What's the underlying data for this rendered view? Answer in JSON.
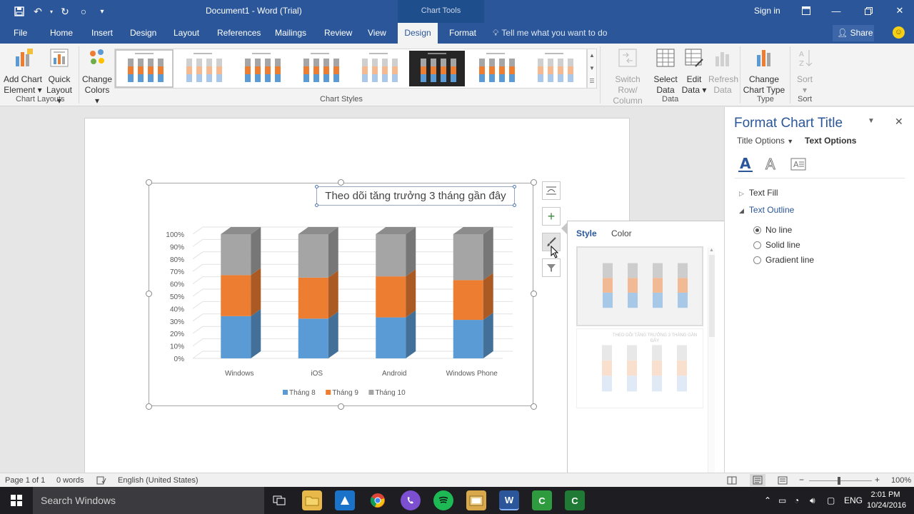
{
  "titlebar": {
    "doc_title": "Document1 - Word (Trial)",
    "context_tab": "Chart Tools",
    "signin": "Sign in"
  },
  "tabs": [
    "File",
    "Home",
    "Insert",
    "Design",
    "Layout",
    "References",
    "Mailings",
    "Review",
    "View",
    "Design",
    "Format"
  ],
  "active_tab_index": 9,
  "tell_me": "Tell me what you want to do",
  "share": "Share",
  "ribbon": {
    "add_chart_element": "Add Chart",
    "add_chart_element2": "Element",
    "quick_layout": "Quick",
    "quick_layout2": "Layout",
    "change_colors": "Change",
    "change_colors2": "Colors",
    "chart_layouts_label": "Chart Layouts",
    "chart_styles_label": "Chart Styles",
    "switch_row": "Switch Row/",
    "switch_row2": "Column",
    "select_data": "Select",
    "select_data2": "Data",
    "edit_data": "Edit",
    "edit_data2": "Data",
    "refresh_data": "Refresh",
    "refresh_data2": "Data",
    "data_label": "Data",
    "change_chart_type": "Change",
    "change_chart_type2": "Chart Type",
    "type_label": "Type",
    "sort": "Sort",
    "sort_label": "Sort",
    "accent": "#2b579a"
  },
  "chart": {
    "title": "Theo dõi tăng trưởng 3 tháng gần đây"
  },
  "chart_data": {
    "type": "bar",
    "stacking": "percent",
    "style": "3d-column",
    "title": "Theo dõi tăng trưởng 3 tháng gần đây",
    "categories": [
      "Windows",
      "iOS",
      "Android",
      "Windows Phone"
    ],
    "series": [
      {
        "name": "Tháng 8",
        "color": "#5b9bd5",
        "values": [
          34,
          32,
          33,
          31
        ]
      },
      {
        "name": "Tháng 9",
        "color": "#ed7d31",
        "values": [
          33,
          33,
          33,
          32
        ]
      },
      {
        "name": "Tháng 10",
        "color": "#a5a5a5",
        "values": [
          33,
          35,
          34,
          37
        ]
      }
    ],
    "y_ticks": [
      "0%",
      "10%",
      "20%",
      "30%",
      "40%",
      "50%",
      "60%",
      "70%",
      "80%",
      "90%",
      "100%"
    ],
    "ylim": [
      0,
      100
    ],
    "legend_position": "bottom",
    "grid": true
  },
  "style_popup": {
    "tab_style": "Style",
    "tab_color": "Color",
    "preview_title": "THEO DÕI TĂNG TRƯỞNG 3 THÁNG GẦN ĐÂY"
  },
  "format_pane": {
    "title": "Format Chart Title",
    "title_options": "Title Options",
    "text_options": "Text Options",
    "text_fill": "Text Fill",
    "text_outline": "Text Outline",
    "no_line": "No line",
    "solid_line": "Solid line",
    "gradient_line": "Gradient line"
  },
  "status": {
    "page": "Page 1 of 1",
    "words": "0 words",
    "language": "English (United States)",
    "zoom": "100%"
  },
  "taskbar": {
    "search": "Search Windows",
    "lang": "ENG",
    "time": "2:01 PM",
    "date": "10/24/2016"
  }
}
